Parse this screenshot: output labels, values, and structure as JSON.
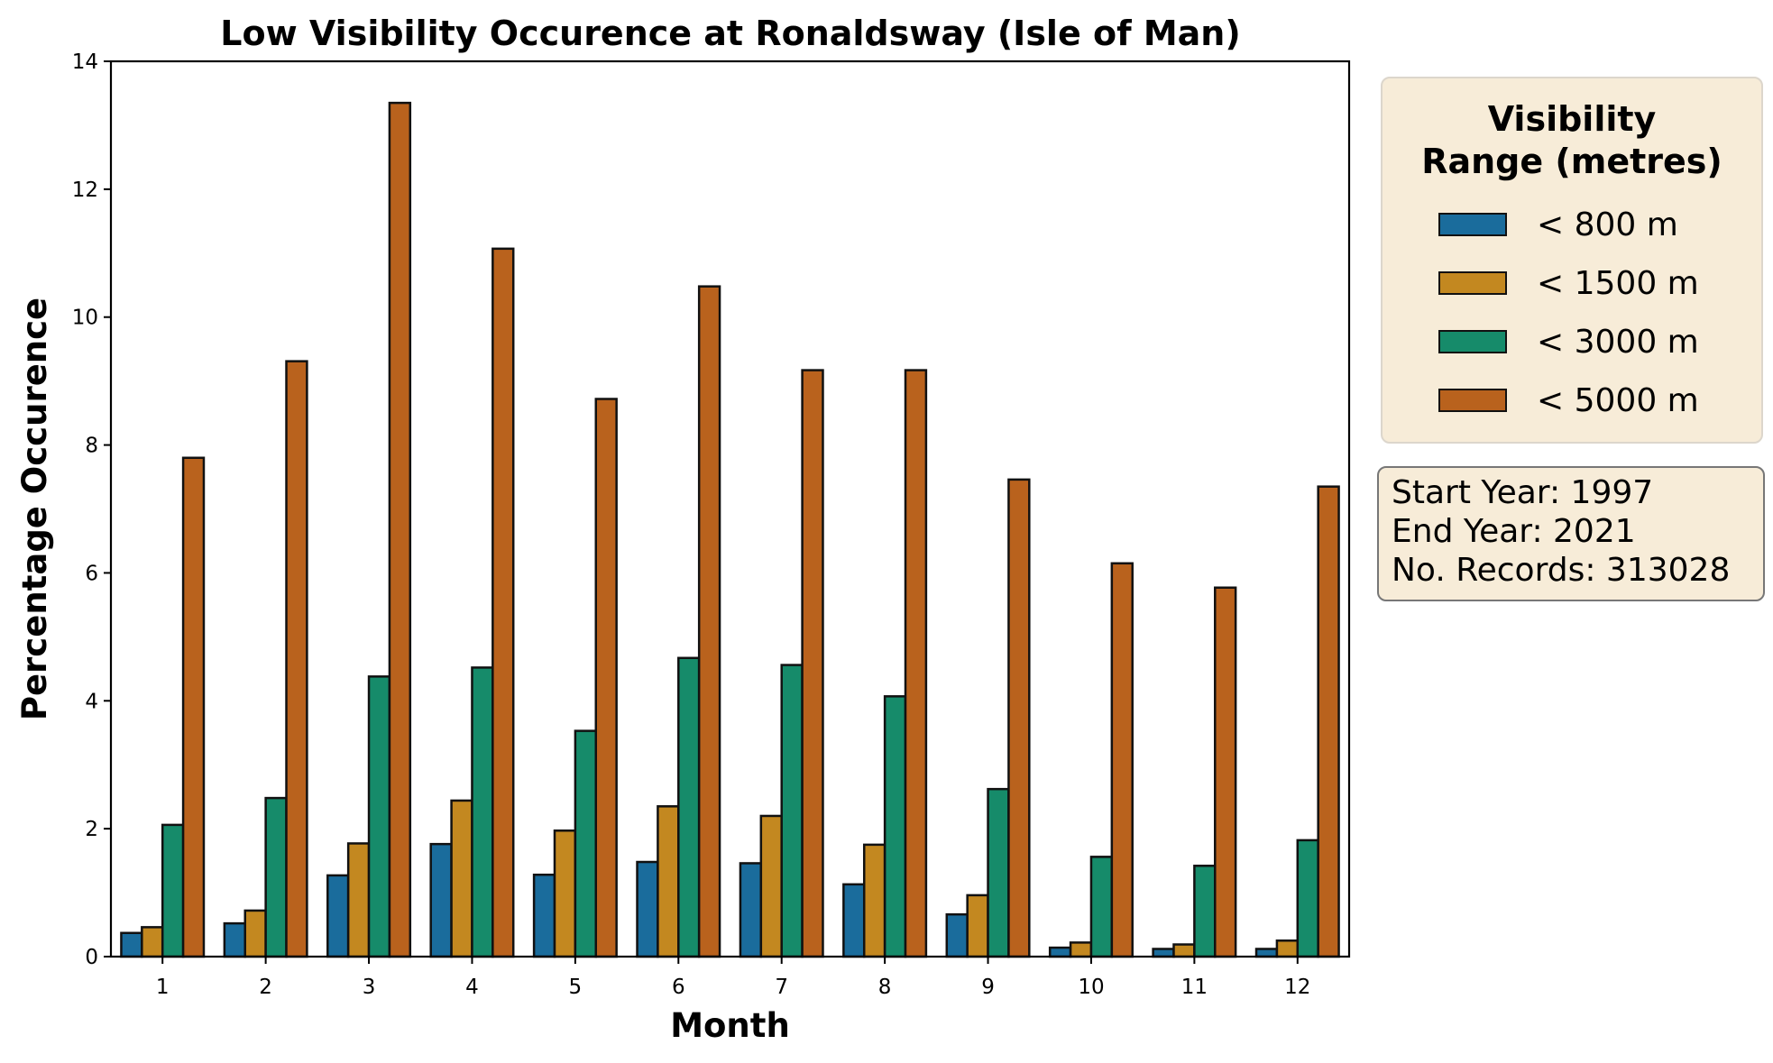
{
  "chart_data": {
    "type": "bar",
    "title": "Low Visibility Occurence at Ronaldsway (Isle of Man)",
    "xlabel": "Month",
    "ylabel": "Percentage Occurence",
    "categories": [
      "1",
      "2",
      "3",
      "4",
      "5",
      "6",
      "7",
      "8",
      "9",
      "10",
      "11",
      "12"
    ],
    "ylim": [
      0,
      14
    ],
    "yticks": [
      "0",
      "2",
      "4",
      "6",
      "8",
      "10",
      "12",
      "14"
    ],
    "grid": false,
    "legend": {
      "title": "Visibility Range (metres)",
      "title_lines": [
        "Visibility",
        "Range (metres)"
      ],
      "placement": "outside-right-top"
    },
    "series": [
      {
        "name": "< 800 m",
        "color": "#1a6c9c",
        "values": [
          0.37,
          0.52,
          1.27,
          1.76,
          1.28,
          1.48,
          1.46,
          1.13,
          0.66,
          0.14,
          0.12,
          0.12
        ]
      },
      {
        "name": "< 1500 m",
        "color": "#c38820",
        "values": [
          0.46,
          0.72,
          1.77,
          2.44,
          1.97,
          2.35,
          2.2,
          1.75,
          0.96,
          0.22,
          0.19,
          0.25
        ]
      },
      {
        "name": "< 3000 m",
        "color": "#168b6a",
        "values": [
          2.06,
          2.48,
          4.38,
          4.52,
          3.53,
          4.67,
          4.56,
          4.07,
          2.62,
          1.56,
          1.42,
          1.82
        ]
      },
      {
        "name": "< 5000 m",
        "color": "#b9621d",
        "values": [
          7.8,
          9.31,
          13.35,
          11.07,
          8.72,
          10.48,
          9.17,
          9.17,
          7.46,
          6.15,
          5.77,
          7.35
        ]
      }
    ]
  },
  "info_box": {
    "lines": [
      "Start Year: 1997",
      "End Year: 2021",
      "No. Records: 313028"
    ]
  },
  "colors": {
    "legend_background": "#f7ecd8",
    "bar_edge": "#111111"
  }
}
